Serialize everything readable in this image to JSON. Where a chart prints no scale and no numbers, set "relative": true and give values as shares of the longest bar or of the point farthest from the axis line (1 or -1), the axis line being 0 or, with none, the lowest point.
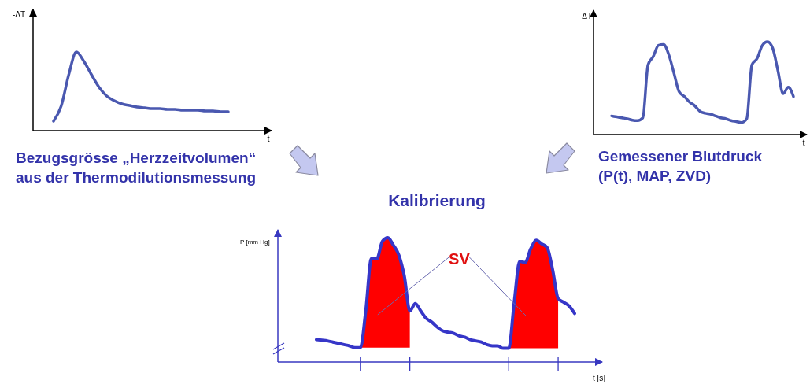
{
  "chart_data": [
    {
      "type": "line",
      "relative": true,
      "xlabel": "t",
      "ylabel": "-ΔT",
      "annotations": [
        "Bezugsgrösse „Herzzeitvolumen“",
        "aus der Thermodilutionsmessung"
      ],
      "categories": [
        null,
        null,
        null,
        null,
        null,
        null,
        null,
        null,
        null,
        null,
        null,
        null,
        null,
        null,
        null,
        null,
        null,
        null,
        null,
        null,
        null,
        null,
        null,
        null
      ],
      "series": [
        {
          "color": "#4a58b0",
          "values": [
            0.12,
            0.31,
            0.71,
            1,
            0.88,
            0.71,
            0.55,
            0.44,
            0.38,
            0.34,
            0.32,
            0.3,
            0.29,
            0.28,
            0.28,
            0.27,
            0.27,
            0.26,
            0.26,
            0.26,
            0.25,
            0.25,
            0.24,
            0.24
          ]
        }
      ]
    },
    {
      "type": "line",
      "relative": true,
      "xlabel": "t",
      "ylabel": "-ΔT",
      "annotations": [
        "Gemessener Blutdruck",
        "(P(t), MAP, ZVD)"
      ],
      "categories": [
        null,
        null,
        null,
        null,
        null,
        null,
        null,
        null,
        null,
        null,
        null,
        null,
        null,
        null,
        null,
        null,
        null,
        null,
        null,
        null,
        null,
        null,
        null,
        null,
        null,
        null,
        null,
        null,
        null,
        null,
        null,
        null,
        null,
        null,
        null,
        null
      ],
      "series": [
        {
          "color": "#4a58b0",
          "values": [
            0.2,
            0.19,
            0.18,
            0.17,
            0.155,
            0.15,
            0.18,
            0.75,
            0.84,
            0.96,
            0.97,
            0.86,
            0.66,
            0.46,
            0.41,
            0.35,
            0.31,
            0.25,
            0.23,
            0.22,
            0.2,
            0.18,
            0.17,
            0.15,
            0.14,
            0.13,
            0.17,
            0.75,
            0.82,
            0.96,
            1,
            0.93,
            0.69,
            0.44,
            0.51,
            0.41
          ]
        }
      ]
    },
    {
      "type": "line",
      "relative": true,
      "title": "Kalibrierung",
      "xlabel": "t [s]",
      "ylabel": "P [mm Hg]",
      "annotations": [
        "SV"
      ],
      "categories": [
        null,
        null,
        null,
        null,
        null,
        null,
        null,
        null,
        null,
        null,
        null,
        null,
        null,
        null,
        null,
        null,
        null,
        null,
        null,
        null,
        null,
        null,
        null,
        null,
        null,
        null,
        null,
        null,
        null,
        null,
        null,
        null,
        null,
        null,
        null,
        null,
        null,
        null,
        null,
        null,
        null,
        null,
        null,
        null,
        null,
        null,
        null,
        null
      ],
      "series": [
        {
          "type": "area",
          "color": "#ff0000",
          "values": [
            null,
            null,
            null,
            null,
            null,
            null,
            null,
            null,
            0.115,
            0.42,
            0.83,
            0.83,
            0.97,
            1,
            0.94,
            0.86,
            0.69,
            0.41,
            null,
            null,
            null,
            null,
            null,
            null,
            null,
            null,
            null,
            null,
            null,
            null,
            null,
            null,
            null,
            null,
            null,
            0.11,
            0.48,
            0.81,
            0.8,
            0.91,
            0.98,
            0.95,
            0.92,
            0.74,
            0.51,
            null,
            null,
            null
          ]
        },
        {
          "type": "line",
          "color": "#3636c8",
          "values": [
            0.18,
            0.175,
            0.17,
            0.16,
            0.15,
            0.14,
            0.13,
            0.115,
            0.115,
            0.42,
            0.83,
            0.83,
            0.97,
            1,
            0.94,
            0.86,
            0.69,
            0.41,
            0.47,
            0.41,
            0.35,
            0.32,
            0.28,
            0.25,
            0.24,
            0.23,
            0.21,
            0.2,
            0.18,
            0.17,
            0.16,
            0.14,
            0.13,
            0.13,
            0.11,
            0.11,
            0.48,
            0.81,
            0.8,
            0.91,
            0.98,
            0.95,
            0.92,
            0.74,
            0.51,
            0.48,
            0.45,
            0.39
          ]
        }
      ]
    }
  ]
}
